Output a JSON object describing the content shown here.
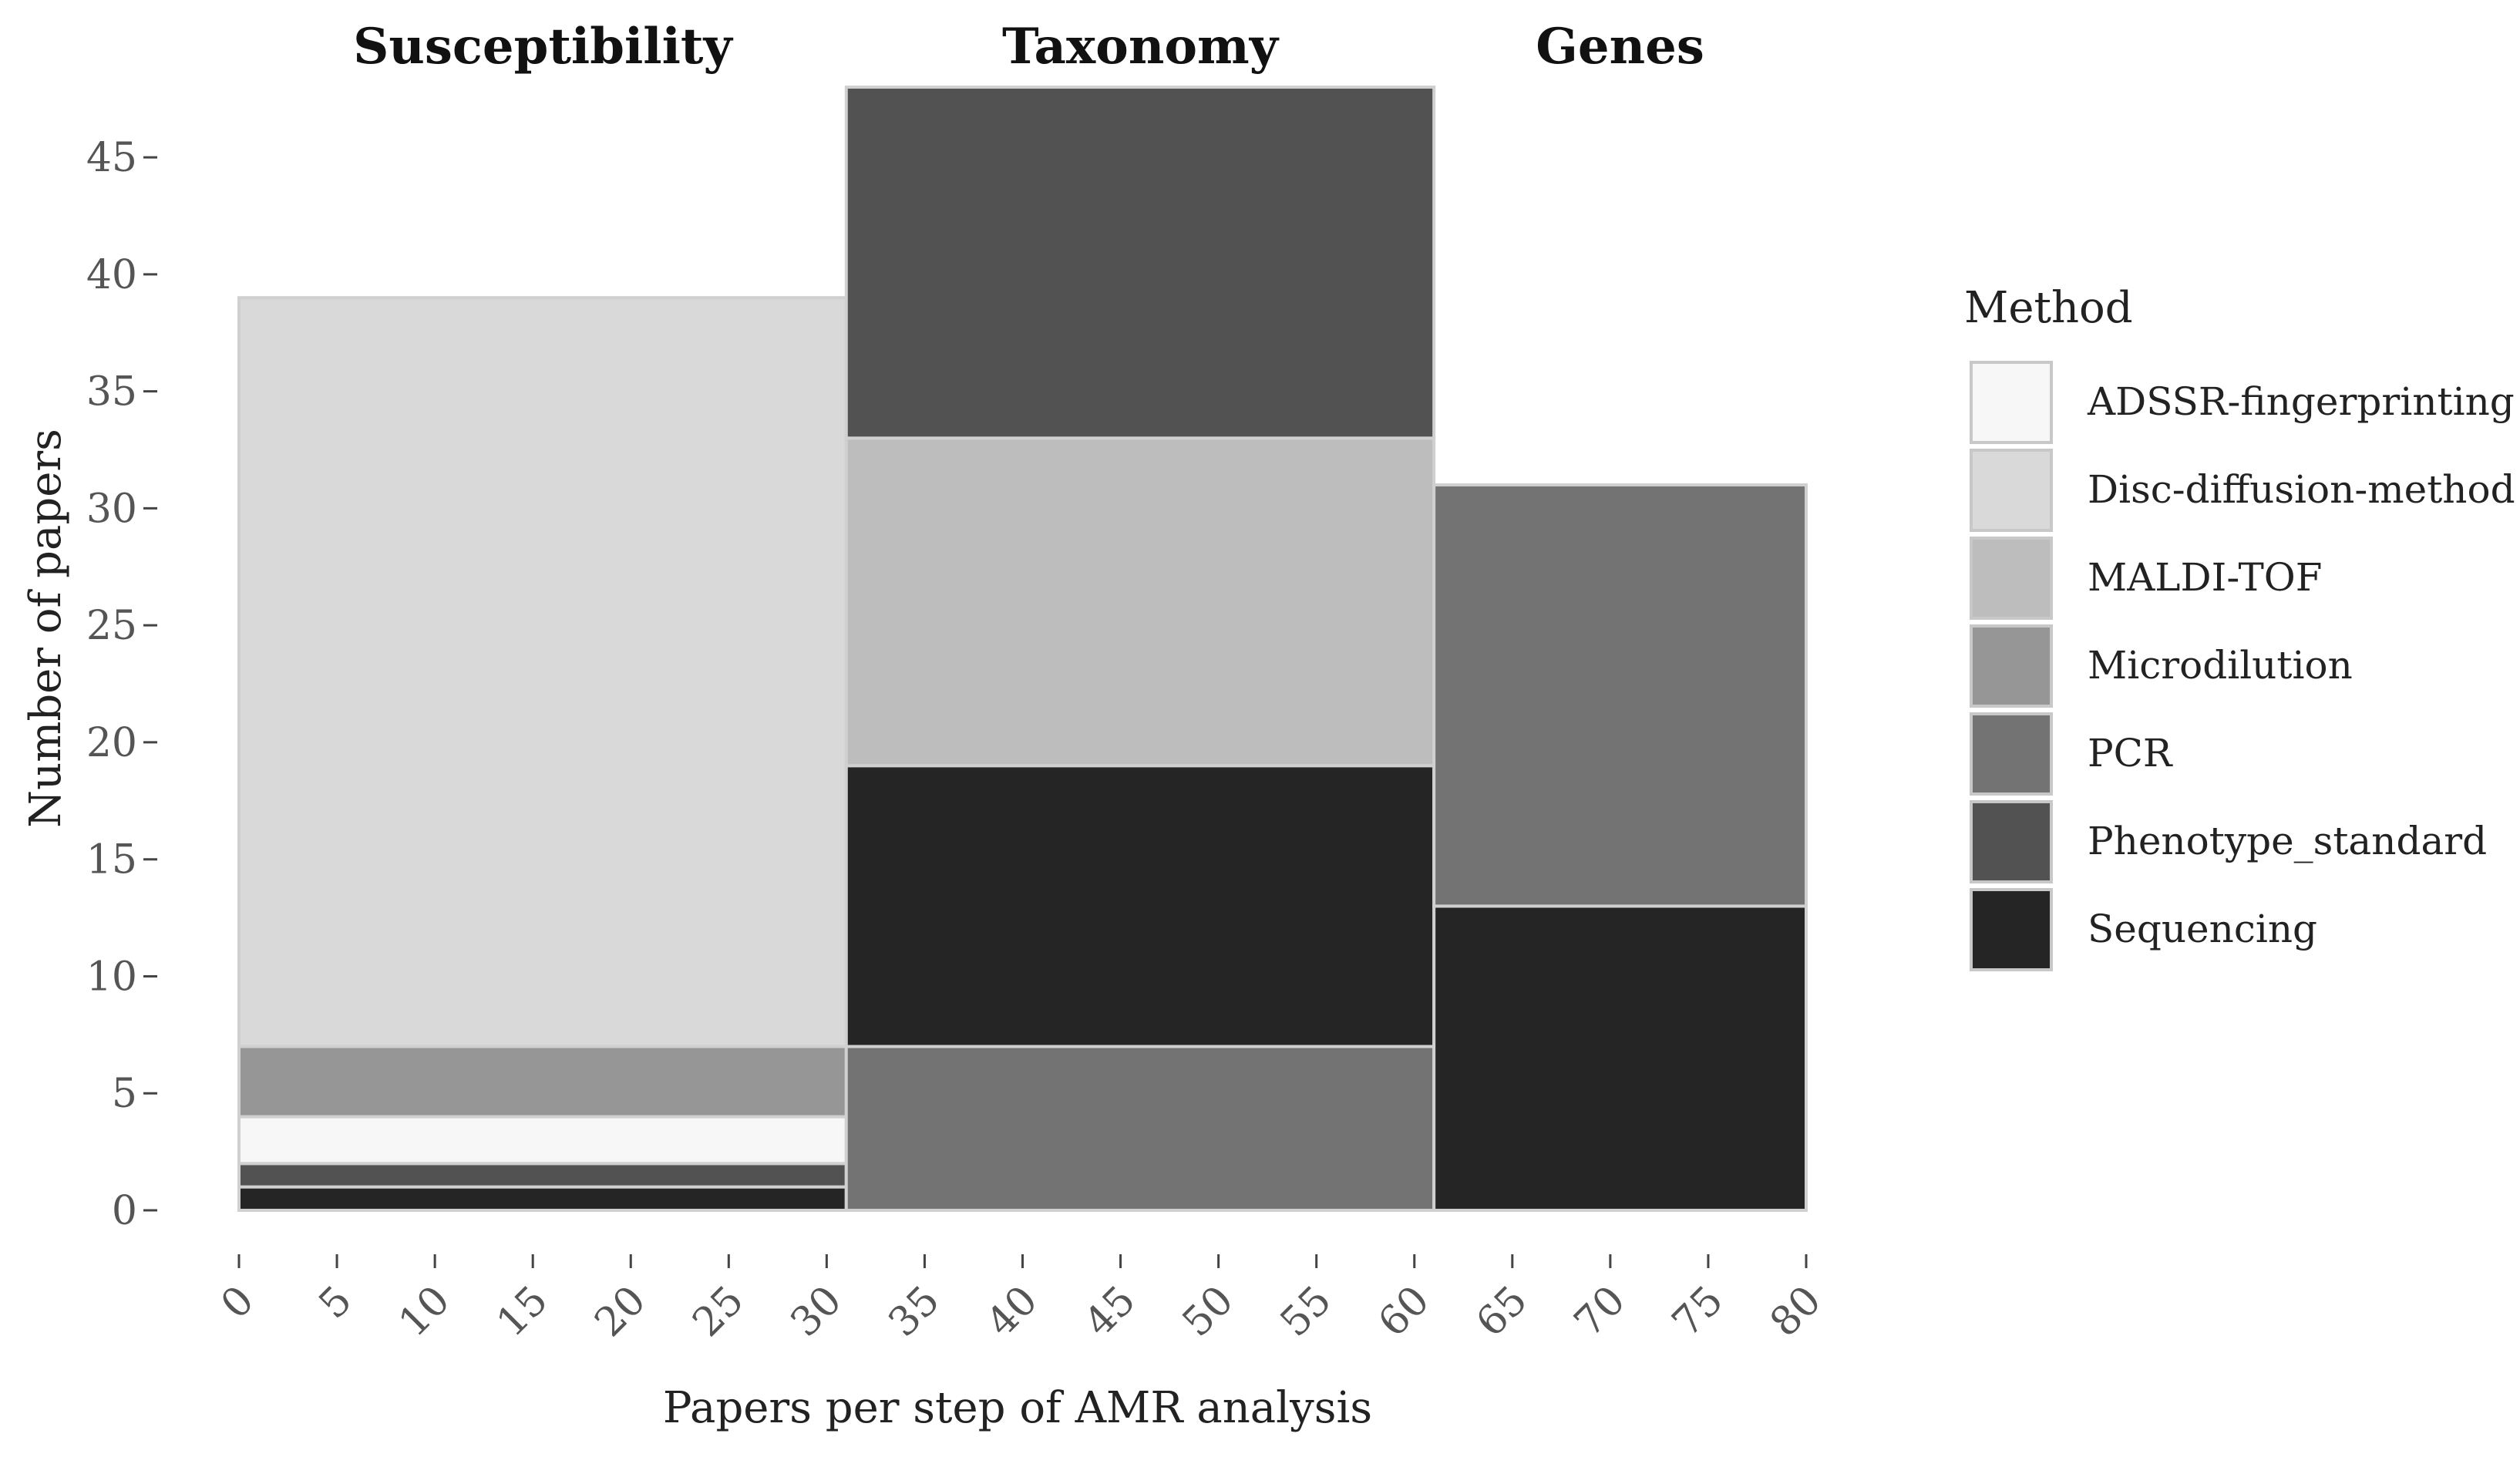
{
  "chart_data": {
    "type": "bar",
    "subtype": "stacked-variable-width",
    "xlabel": "Papers per step of AMR analysis",
    "ylabel": "Number of papers",
    "xlim": [
      0,
      80
    ],
    "ylim": [
      0,
      48
    ],
    "x_ticks": [
      "0",
      "5",
      "10",
      "15",
      "20",
      "25",
      "30",
      "35",
      "40",
      "45",
      "50",
      "55",
      "60",
      "65",
      "70",
      "75",
      "80"
    ],
    "y_ticks": [
      "0",
      "5",
      "10",
      "15",
      "20",
      "25",
      "30",
      "35",
      "40",
      "45"
    ],
    "legend": {
      "title": "Method",
      "placement": "right",
      "entries": [
        {
          "name": "ADSSR-fingerprinting",
          "color": "#f7f7f7"
        },
        {
          "name": "Disc-diffusion-method",
          "color": "#d9d9d9"
        },
        {
          "name": "MALDI-TOF",
          "color": "#bdbdbd"
        },
        {
          "name": "Microdilution",
          "color": "#969696"
        },
        {
          "name": "PCR",
          "color": "#737373"
        },
        {
          "name": "Phenotype_standard",
          "color": "#525252"
        },
        {
          "name": "Sequencing",
          "color": "#252525"
        }
      ]
    },
    "panels": [
      {
        "label": "Susceptibility",
        "x_start": 0,
        "x_end": 31,
        "total": 39,
        "segments": [
          {
            "method": "Sequencing",
            "value": 1
          },
          {
            "method": "Phenotype_standard",
            "value": 1
          },
          {
            "method": "ADSSR-fingerprinting",
            "value": 2
          },
          {
            "method": "Microdilution",
            "value": 3
          },
          {
            "method": "Disc-diffusion-method",
            "value": 32
          }
        ]
      },
      {
        "label": "Taxonomy",
        "x_start": 31,
        "x_end": 61,
        "total": 48,
        "segments": [
          {
            "method": "PCR",
            "value": 7
          },
          {
            "method": "Sequencing",
            "value": 12
          },
          {
            "method": "MALDI-TOF",
            "value": 14
          },
          {
            "method": "Phenotype_standard",
            "value": 15
          }
        ]
      },
      {
        "label": "Genes",
        "x_start": 61,
        "x_end": 80,
        "total": 31,
        "segments": [
          {
            "method": "Sequencing",
            "value": 13
          },
          {
            "method": "PCR",
            "value": 18
          }
        ]
      }
    ]
  }
}
